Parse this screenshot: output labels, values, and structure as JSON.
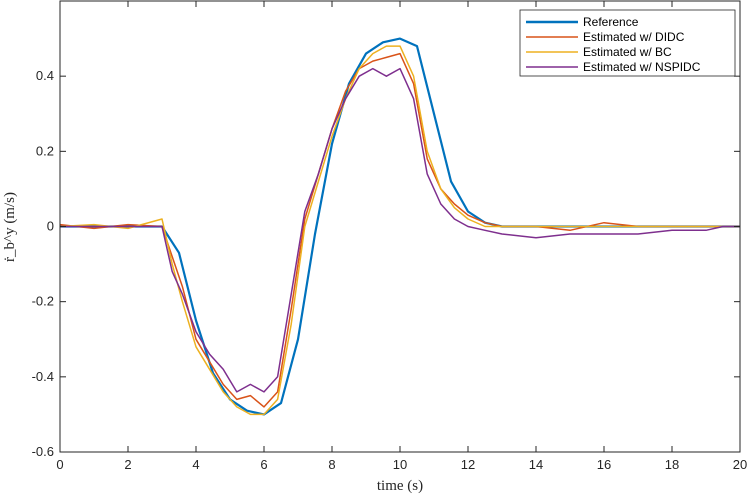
{
  "chart_data": {
    "type": "line",
    "xlabel": "time (s)",
    "ylabel": "ṙ_b^y (m/s)",
    "xlim": [
      0,
      20
    ],
    "ylim": [
      -0.6,
      0.6
    ],
    "xticks": [
      0,
      2,
      4,
      6,
      8,
      10,
      12,
      14,
      16,
      18,
      20
    ],
    "yticks": [
      -0.6,
      -0.4,
      -0.2,
      0,
      0.2,
      0.4
    ],
    "ytick_labels": [
      "-0.6",
      "-0.4",
      "-0.2",
      "0",
      "0.2",
      "0.4"
    ],
    "grid": false,
    "legend_position": "top-right",
    "series": [
      {
        "name": "Reference",
        "color": "#0072BD",
        "x": [
          0,
          3.0,
          3.5,
          4.0,
          4.5,
          5.0,
          5.5,
          6.0,
          6.5,
          7.0,
          7.5,
          8.0,
          8.5,
          9.0,
          9.5,
          10.0,
          10.5,
          11.0,
          11.5,
          12.0,
          12.5,
          13.0,
          20
        ],
        "y": [
          0,
          0,
          -0.07,
          -0.25,
          -0.39,
          -0.46,
          -0.49,
          -0.5,
          -0.47,
          -0.3,
          -0.02,
          0.22,
          0.38,
          0.46,
          0.49,
          0.5,
          0.48,
          0.3,
          0.12,
          0.04,
          0.01,
          0,
          0
        ]
      },
      {
        "name": "Estimated w/ DIDC",
        "color": "#D95319",
        "x": [
          0,
          1,
          2,
          3.0,
          3.3,
          3.6,
          4.0,
          4.4,
          4.8,
          5.2,
          5.6,
          6.0,
          6.4,
          6.8,
          7.2,
          7.6,
          8.0,
          8.4,
          8.8,
          9.2,
          9.6,
          10.0,
          10.4,
          10.8,
          11.2,
          11.6,
          12.0,
          12.5,
          13.0,
          14.0,
          15.0,
          16.0,
          17.0,
          18.0,
          19.0,
          19.5,
          20
        ],
        "y": [
          0.005,
          -0.005,
          0.005,
          0.0,
          -0.08,
          -0.16,
          -0.3,
          -0.36,
          -0.42,
          -0.46,
          -0.45,
          -0.48,
          -0.44,
          -0.22,
          0.02,
          0.14,
          0.26,
          0.36,
          0.42,
          0.44,
          0.45,
          0.46,
          0.38,
          0.18,
          0.1,
          0.06,
          0.03,
          0.01,
          0.0,
          0.0,
          -0.01,
          0.01,
          0.0,
          0.0,
          0.0,
          0.0,
          0.0
        ]
      },
      {
        "name": "Estimated w/ BC",
        "color": "#EDB120",
        "x": [
          0,
          1,
          2,
          3.0,
          3.3,
          3.6,
          4.0,
          4.4,
          4.8,
          5.2,
          5.6,
          6.0,
          6.4,
          6.8,
          7.2,
          7.6,
          8.0,
          8.4,
          8.8,
          9.2,
          9.6,
          10.0,
          10.4,
          10.8,
          11.2,
          11.6,
          12.0,
          12.5,
          13.0,
          14.0,
          15.0,
          16.0,
          17.0,
          18.0,
          19.0,
          19.5,
          20
        ],
        "y": [
          0.0,
          0.005,
          -0.005,
          0.02,
          -0.1,
          -0.2,
          -0.32,
          -0.38,
          -0.44,
          -0.48,
          -0.5,
          -0.5,
          -0.46,
          -0.26,
          0.0,
          0.12,
          0.24,
          0.34,
          0.42,
          0.46,
          0.48,
          0.48,
          0.4,
          0.2,
          0.1,
          0.05,
          0.02,
          0.0,
          0.0,
          0.0,
          0.0,
          0.0,
          0.0,
          0.0,
          0.0,
          0.0,
          0.0
        ]
      },
      {
        "name": "Estimated w/ NSPIDC",
        "color": "#7E2F8E",
        "x": [
          0,
          1,
          2,
          3.0,
          3.3,
          3.6,
          4.0,
          4.4,
          4.8,
          5.2,
          5.6,
          6.0,
          6.4,
          6.8,
          7.2,
          7.6,
          8.0,
          8.4,
          8.8,
          9.2,
          9.6,
          10.0,
          10.4,
          10.8,
          11.2,
          11.6,
          12.0,
          12.5,
          13.0,
          14.0,
          15.0,
          16.0,
          17.0,
          18.0,
          19.0,
          19.5,
          20
        ],
        "y": [
          0.0,
          0.0,
          0.0,
          0.0,
          -0.12,
          -0.18,
          -0.28,
          -0.34,
          -0.38,
          -0.44,
          -0.42,
          -0.44,
          -0.4,
          -0.18,
          0.04,
          0.14,
          0.26,
          0.34,
          0.4,
          0.42,
          0.4,
          0.42,
          0.34,
          0.14,
          0.06,
          0.02,
          0.0,
          -0.01,
          -0.02,
          -0.03,
          -0.02,
          -0.02,
          -0.02,
          -0.01,
          -0.01,
          0.0,
          0.0
        ]
      }
    ]
  }
}
